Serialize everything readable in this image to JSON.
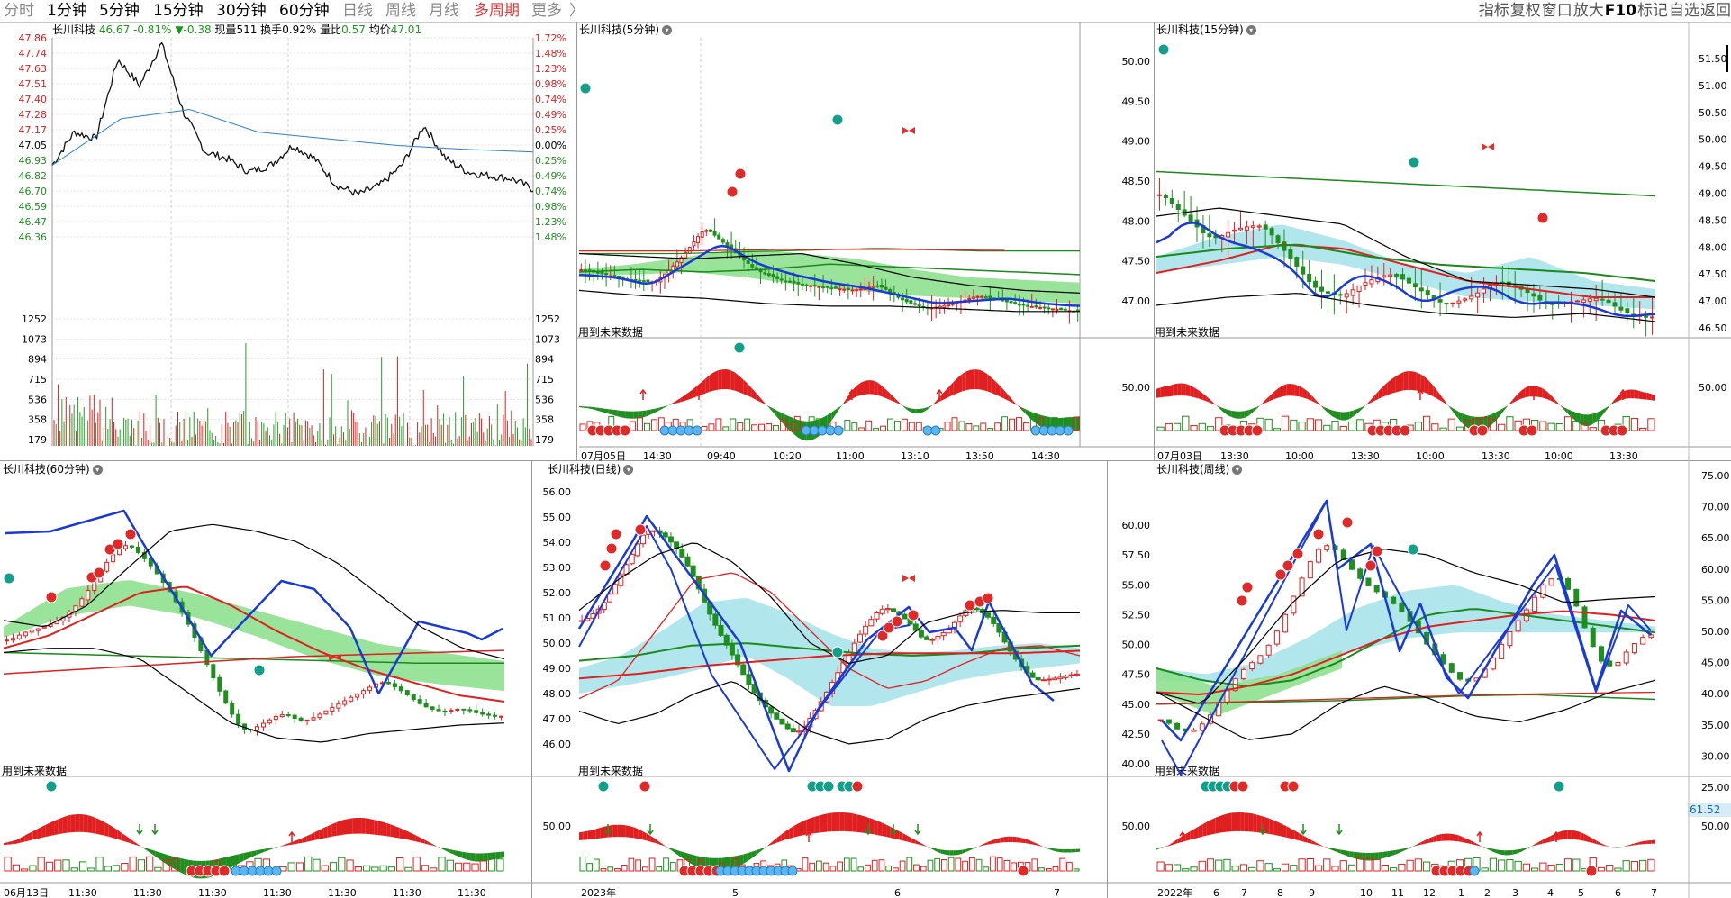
{
  "toolbar": {
    "periods": [
      "分时",
      "1分钟",
      "5分钟",
      "15分钟",
      "30分钟",
      "60分钟",
      "日线",
      "周线",
      "月线",
      "多周期",
      "更多"
    ],
    "more_arrow": "〉",
    "right_tools": [
      "指标",
      "复权",
      "窗口",
      "放大",
      "F10",
      "标记",
      "自选",
      "返回"
    ]
  },
  "panels": {
    "intraday": {
      "title": "长川科技",
      "quote": {
        "price": "46.67",
        "change_pct": "-0.81%",
        "change": "▼-0.38",
        "volume_label": "现量",
        "volume": "511",
        "turnover_label": "换手",
        "turnover": "0.92%",
        "ratio_label": "量比",
        "ratio": "0.57",
        "avg_label": "均价",
        "avg": "47.01"
      },
      "price_ticks": [
        "47.86",
        "47.74",
        "47.63",
        "47.51",
        "47.40",
        "47.28",
        "47.17",
        "47.05",
        "46.93",
        "46.82",
        "46.70",
        "46.59",
        "46.47",
        "46.36"
      ],
      "pct_ticks": [
        "1.72%",
        "1.48%",
        "1.23%",
        "0.98%",
        "0.74%",
        "0.49%",
        "0.25%",
        "0.00%",
        "0.25%",
        "0.49%",
        "0.74%",
        "0.98%",
        "1.23%",
        "1.48%"
      ],
      "vol_ticks": [
        "1252",
        "1073",
        "894",
        "715",
        "536",
        "358",
        "179"
      ]
    },
    "min5": {
      "title": "长川科技(5分钟)",
      "note": "用到未来数据",
      "x_labels": [
        "07月05日",
        "14:30",
        "09:40",
        "10:20",
        "11:00",
        "13:10",
        "13:50",
        "14:30"
      ]
    },
    "min15": {
      "title": "长川科技(15分钟)",
      "note": "用到未来数据",
      "y_ticks": [
        "50.00",
        "49.50",
        "49.00",
        "48.50",
        "48.00",
        "47.50",
        "47.00"
      ],
      "lower_tick": "50.00",
      "x_labels": [
        "07月03日",
        "13:30",
        "10:00",
        "13:30",
        "10:00",
        "13:30",
        "10:00",
        "13:30"
      ]
    },
    "far_right": {
      "y_ticks": [
        "51.50",
        "51.00",
        "50.50",
        "50.00",
        "49.50",
        "49.00",
        "48.50",
        "48.00",
        "47.50",
        "47.00",
        "46.50"
      ],
      "lower_tick": "50.00"
    },
    "min60": {
      "title": "长川科技(60分钟)",
      "note": "用到未来数据",
      "x_labels": [
        "06月13日",
        "11:30",
        "11:30",
        "11:30",
        "11:30",
        "11:30",
        "11:30",
        "11:30"
      ]
    },
    "daily": {
      "title": "长川科技(日线)",
      "note": "用到未来数据",
      "y_ticks": [
        "56.00",
        "55.00",
        "54.00",
        "53.00",
        "52.00",
        "51.00",
        "50.00",
        "49.00",
        "48.00",
        "47.00",
        "46.00"
      ],
      "lower_tick": "50.00",
      "x_labels": [
        "2023年",
        "5",
        "6",
        "7"
      ]
    },
    "weekly": {
      "title": "长川科技(周线)",
      "note": "用到未来数据",
      "y_ticks": [
        "60.00",
        "57.50",
        "55.00",
        "52.50",
        "50.00",
        "47.50",
        "45.00",
        "42.50",
        "40.00"
      ],
      "lower_tick": "50.00",
      "x_labels": [
        "2022年",
        "6",
        "7",
        "8",
        "9",
        "10",
        "11",
        "12",
        "1",
        "2",
        "3",
        "4",
        "5",
        "6",
        "7"
      ]
    },
    "weekly_right": {
      "y_ticks": [
        "75.00",
        "70.00",
        "65.00",
        "60.00",
        "55.00",
        "50.00",
        "45.00",
        "40.00",
        "35.00",
        "30.00",
        "25.00"
      ],
      "lower_tick": "50.00",
      "badge": "61.52"
    }
  },
  "colors": {
    "up": "#e02020",
    "down": "#1f8f1f",
    "blue": "#1a3ad8",
    "band_green": "#8fe08f",
    "band_cyan": "#a8e4ea"
  }
}
